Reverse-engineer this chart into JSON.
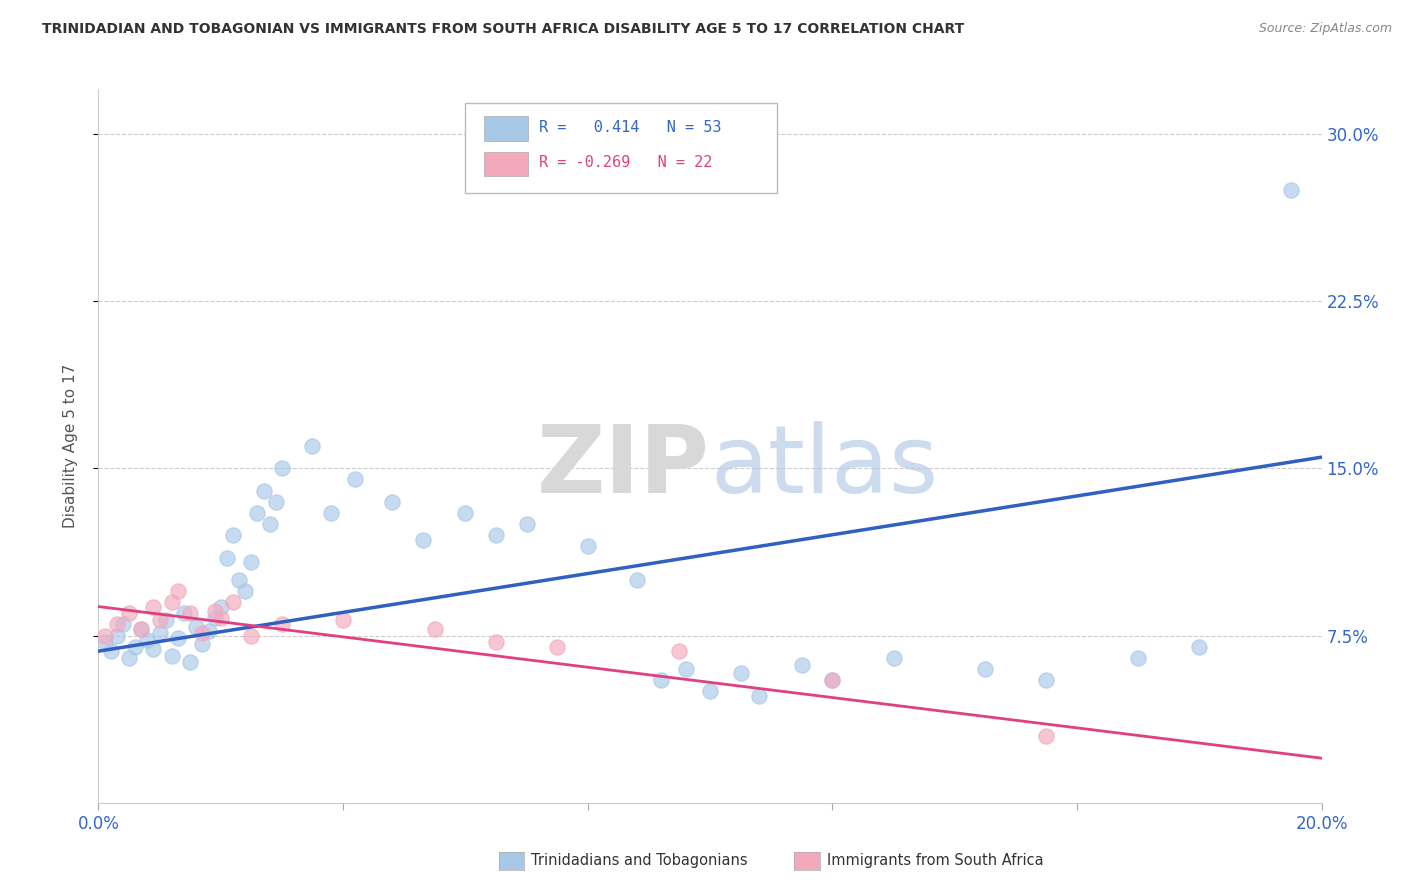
{
  "title": "TRINIDADIAN AND TOBAGONIAN VS IMMIGRANTS FROM SOUTH AFRICA DISABILITY AGE 5 TO 17 CORRELATION CHART",
  "source": "Source: ZipAtlas.com",
  "ylabel": "Disability Age 5 to 17",
  "xlim": [
    0.0,
    0.2
  ],
  "ylim": [
    0.0,
    0.32
  ],
  "blue_R": 0.414,
  "blue_N": 53,
  "pink_R": -0.269,
  "pink_N": 22,
  "blue_color": "#a8c8e8",
  "pink_color": "#f4a8bc",
  "blue_line_color": "#3060c0",
  "pink_line_color": "#e04080",
  "background_color": "#ffffff",
  "grid_color": "#cccccc",
  "blue_x": [
    0.001,
    0.002,
    0.003,
    0.004,
    0.005,
    0.006,
    0.007,
    0.008,
    0.009,
    0.01,
    0.011,
    0.012,
    0.013,
    0.014,
    0.015,
    0.016,
    0.017,
    0.018,
    0.019,
    0.02,
    0.021,
    0.022,
    0.023,
    0.024,
    0.025,
    0.026,
    0.027,
    0.028,
    0.029,
    0.03,
    0.035,
    0.038,
    0.042,
    0.048,
    0.053,
    0.06,
    0.065,
    0.07,
    0.08,
    0.088,
    0.092,
    0.096,
    0.1,
    0.105,
    0.108,
    0.115,
    0.12,
    0.13,
    0.145,
    0.155,
    0.17,
    0.18,
    0.195
  ],
  "blue_y": [
    0.072,
    0.068,
    0.075,
    0.08,
    0.065,
    0.07,
    0.078,
    0.073,
    0.069,
    0.076,
    0.082,
    0.066,
    0.074,
    0.085,
    0.063,
    0.079,
    0.071,
    0.077,
    0.083,
    0.088,
    0.11,
    0.12,
    0.1,
    0.095,
    0.108,
    0.13,
    0.14,
    0.125,
    0.135,
    0.15,
    0.16,
    0.13,
    0.145,
    0.135,
    0.118,
    0.13,
    0.12,
    0.125,
    0.115,
    0.1,
    0.055,
    0.06,
    0.05,
    0.058,
    0.048,
    0.062,
    0.055,
    0.065,
    0.06,
    0.055,
    0.065,
    0.07,
    0.275
  ],
  "pink_x": [
    0.001,
    0.003,
    0.005,
    0.007,
    0.009,
    0.01,
    0.012,
    0.013,
    0.015,
    0.017,
    0.019,
    0.02,
    0.022,
    0.025,
    0.03,
    0.04,
    0.055,
    0.065,
    0.075,
    0.095,
    0.12,
    0.155
  ],
  "pink_y": [
    0.075,
    0.08,
    0.085,
    0.078,
    0.088,
    0.082,
    0.09,
    0.095,
    0.085,
    0.076,
    0.086,
    0.083,
    0.09,
    0.075,
    0.08,
    0.082,
    0.078,
    0.072,
    0.07,
    0.068,
    0.055,
    0.03
  ],
  "blue_line_x0": 0.0,
  "blue_line_y0": 0.068,
  "blue_line_x1": 0.2,
  "blue_line_y1": 0.155,
  "pink_line_x0": 0.0,
  "pink_line_y0": 0.088,
  "pink_line_x1": 0.2,
  "pink_line_y1": 0.02
}
